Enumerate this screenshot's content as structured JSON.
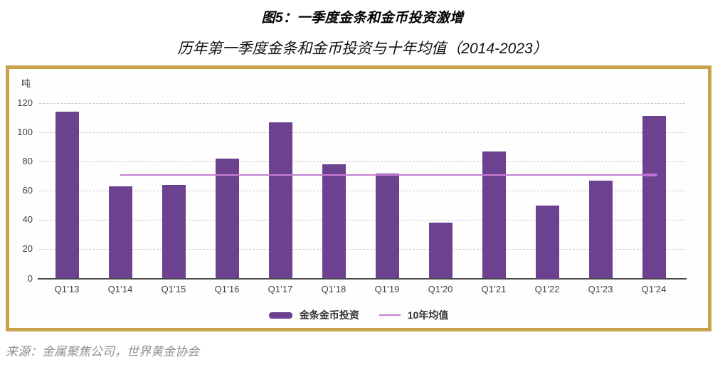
{
  "header": {
    "title": "图5：一季度金条和金币投资激增",
    "subtitle": "历年第一季度金条和金币投资与十年均值（2014-2023）"
  },
  "chart_data": {
    "type": "bar",
    "title": "历年第一季度金条和金币投资与十年均值（2014-2023）",
    "unit": "吨",
    "ylabel": "吨",
    "xlabel": "",
    "ylim": [
      0,
      120
    ],
    "yticks": [
      0,
      20,
      40,
      60,
      80,
      100,
      120
    ],
    "grid": "horizontal-dashed",
    "legend_position": "bottom",
    "categories": [
      "Q1’13",
      "Q1’14",
      "Q1’15",
      "Q1’16",
      "Q1’17",
      "Q1’18",
      "Q1’19",
      "Q1’20",
      "Q1’21",
      "Q1’22",
      "Q1’23",
      "Q1’24"
    ],
    "series": [
      {
        "name": "金条金币投资",
        "type": "bar",
        "color": "#6b4190",
        "values": [
          114,
          63,
          64,
          82,
          107,
          78,
          72,
          38,
          87,
          50,
          67,
          111
        ]
      },
      {
        "name": "10年均值",
        "type": "line",
        "color": "#c77fd4",
        "value": 71,
        "span": [
          "Q1’14",
          "Q1’24"
        ]
      }
    ]
  },
  "footer": {
    "source": "来源：金属聚焦公司，世界黄金协会"
  },
  "colors": {
    "bar": "#6b4190",
    "average_line": "#c77fd4",
    "panel_border": "#c8a24a",
    "axis_text": "#3f3f3f",
    "gridline": "#c9c9c9",
    "axis_line": "#4a4a4a",
    "source_text": "#8f8f8f"
  }
}
